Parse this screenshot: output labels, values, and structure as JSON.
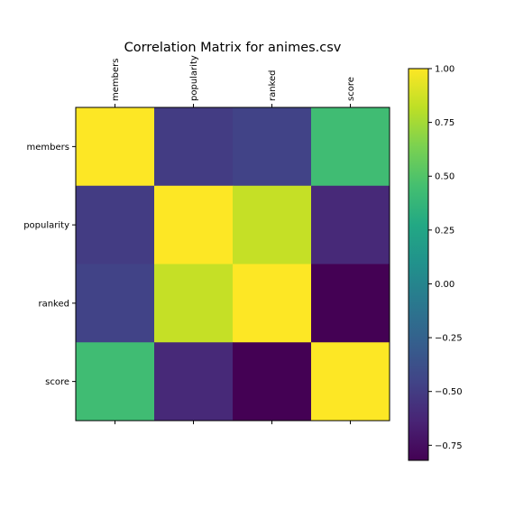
{
  "chart_data": {
    "type": "heatmap",
    "title": "Correlation Matrix for animes.csv",
    "xlabel": "",
    "ylabel": "",
    "categories": [
      "members",
      "popularity",
      "ranked",
      "score"
    ],
    "matrix": [
      [
        1.0,
        -0.5,
        -0.46,
        0.43
      ],
      [
        -0.5,
        1.0,
        0.84,
        -0.61
      ],
      [
        -0.46,
        0.84,
        1.0,
        -0.82
      ],
      [
        0.43,
        -0.61,
        -0.82,
        1.0
      ]
    ],
    "colormap": "viridis",
    "colorbar": {
      "range": [
        -0.82,
        1.0
      ],
      "ticks": [
        1.0,
        0.75,
        0.5,
        0.25,
        0.0,
        -0.25,
        -0.5,
        -0.75
      ],
      "tick_labels": [
        "1.00",
        "0.75",
        "0.50",
        "0.25",
        "0.00",
        "−0.25",
        "−0.50",
        "−0.75"
      ]
    },
    "x_tick_position": "top",
    "grid": false
  }
}
